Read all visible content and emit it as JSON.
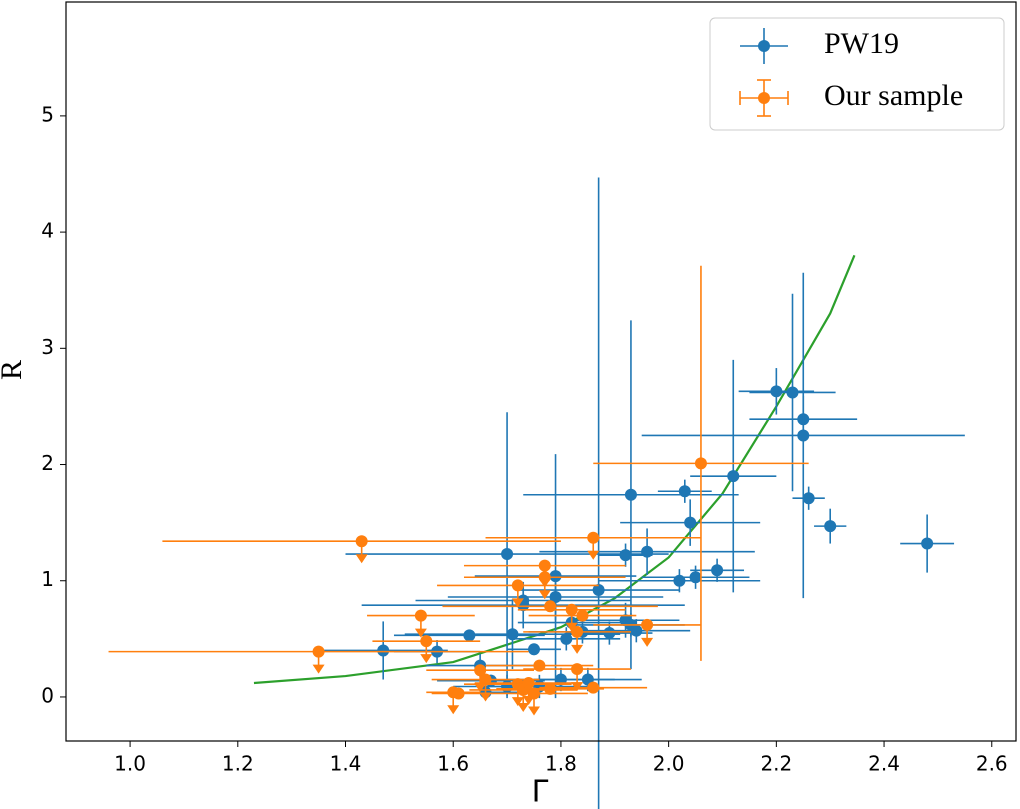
{
  "chart_data": {
    "type": "scatter",
    "xlabel": "Γ",
    "ylabel": "R",
    "xlim": [
      0.881,
      2.645
    ],
    "ylim": [
      -0.379,
      5.98
    ],
    "xticks": [
      {
        "value": 1.0,
        "label": "1.0"
      },
      {
        "value": 1.2,
        "label": "1.2"
      },
      {
        "value": 1.4,
        "label": "1.4"
      },
      {
        "value": 1.6,
        "label": "1.6"
      },
      {
        "value": 1.8,
        "label": "1.8"
      },
      {
        "value": 2.0,
        "label": "2.0"
      },
      {
        "value": 2.2,
        "label": "2.2"
      },
      {
        "value": 2.4,
        "label": "2.4"
      },
      {
        "value": 2.6,
        "label": "2.6"
      }
    ],
    "yticks": [
      0,
      1,
      2,
      3,
      4,
      5
    ],
    "legend": "upper right",
    "series": [
      {
        "name": "PW19",
        "color": "#1f77b4",
        "x": [
          1.47,
          1.57,
          1.63,
          1.65,
          1.66,
          1.67,
          1.7,
          1.7,
          1.71,
          1.73,
          1.73,
          1.75,
          1.76,
          1.79,
          1.79,
          1.8,
          1.81,
          1.82,
          1.84,
          1.85,
          1.87,
          1.89,
          1.92,
          1.93,
          1.92,
          1.93,
          1.94,
          1.96,
          2.02,
          2.03,
          2.04,
          2.05,
          2.09,
          2.12,
          2.2,
          2.23,
          2.25,
          2.25,
          2.26,
          2.3,
          2.48
        ],
        "values": [
          0.4,
          0.39,
          0.53,
          0.27,
          0.04,
          0.14,
          1.23,
          0.09,
          0.54,
          0.79,
          0.83,
          0.41,
          0.09,
          1.04,
          0.86,
          0.15,
          0.5,
          0.64,
          0.56,
          0.15,
          0.92,
          0.55,
          1.22,
          1.74,
          0.66,
          0.62,
          0.57,
          1.25,
          1.0,
          1.77,
          1.5,
          1.03,
          1.09,
          1.9,
          2.63,
          2.62,
          2.39,
          2.25,
          1.71,
          1.47,
          1.32
        ],
        "xerr": [
          0.12,
          0.08,
          0.14,
          0.1,
          0.1,
          0.1,
          0.3,
          0.1,
          0.2,
          0.3,
          0.2,
          0.05,
          0.1,
          0.15,
          0.2,
          0.1,
          0.1,
          0.1,
          0.1,
          0.1,
          0.15,
          0.08,
          0.05,
          0.2,
          0.1,
          0.1,
          0.1,
          0.2,
          0.15,
          0.05,
          0.13,
          0.1,
          0.05,
          0.08,
          0.07,
          0.08,
          0.1,
          0.3,
          0.03,
          0.03,
          0.05
        ],
        "yerr": [
          0.25,
          0.1,
          0.05,
          0.1,
          0.05,
          0.05,
          1.22,
          0.1,
          0.3,
          0.2,
          0.1,
          0.05,
          0.1,
          1.05,
          0.2,
          0.1,
          0.1,
          0.1,
          0.1,
          0.1,
          3.55,
          0.1,
          0.1,
          1.5,
          0.15,
          0.1,
          0.1,
          0.2,
          0.1,
          0.1,
          0.2,
          0.1,
          0.1,
          1.0,
          0.2,
          0.85,
          0.2,
          1.4,
          0.1,
          0.15,
          0.25
        ]
      },
      {
        "name": "Our sample",
        "color": "#ff7f0e",
        "x": [
          1.35,
          1.43,
          1.54,
          1.55,
          1.6,
          1.61,
          1.65,
          1.66,
          1.72,
          1.72,
          1.73,
          1.74,
          1.75,
          1.76,
          1.77,
          1.77,
          1.78,
          1.78,
          1.82,
          1.83,
          1.83,
          1.84,
          1.86,
          1.86,
          1.96,
          2.06
        ],
        "values": [
          0.39,
          1.34,
          0.7,
          0.48,
          0.04,
          0.03,
          0.23,
          0.15,
          0.96,
          0.11,
          0.06,
          0.12,
          0.03,
          0.27,
          1.13,
          1.03,
          0.07,
          0.78,
          0.75,
          0.56,
          0.24,
          0.7,
          0.08,
          1.37,
          0.62,
          2.01
        ],
        "xerr": [
          0.39,
          0.37,
          0.1,
          0.1,
          0.05,
          0.05,
          0.1,
          0.1,
          0.15,
          0.1,
          0.1,
          0.1,
          0.1,
          0.1,
          0.15,
          0.15,
          0.1,
          0.2,
          0.1,
          0.1,
          0.1,
          0.1,
          0.1,
          0.2,
          0.1,
          0.2
        ],
        "yerr": [
          0.02,
          0.02,
          0.02,
          0.02,
          0.02,
          0.02,
          0.02,
          0.02,
          0.02,
          0.02,
          0.02,
          0.02,
          0.02,
          0.02,
          0.02,
          0.02,
          0.02,
          0.02,
          0.02,
          0.02,
          0.02,
          0.02,
          0.02,
          0.02,
          0.02,
          1.7
        ],
        "upper_limits": [
          true,
          true,
          true,
          true,
          true,
          false,
          true,
          true,
          true,
          true,
          true,
          true,
          true,
          false,
          true,
          true,
          false,
          false,
          true,
          true,
          true,
          false,
          false,
          true,
          true,
          false
        ]
      }
    ],
    "curve": {
      "color": "#2ca02c",
      "x": [
        1.23,
        1.4,
        1.6,
        1.8,
        1.9,
        2.0,
        2.1,
        2.2,
        2.3,
        2.345
      ],
      "values": [
        0.12,
        0.18,
        0.3,
        0.6,
        0.85,
        1.2,
        1.75,
        2.5,
        3.3,
        3.8
      ]
    }
  }
}
